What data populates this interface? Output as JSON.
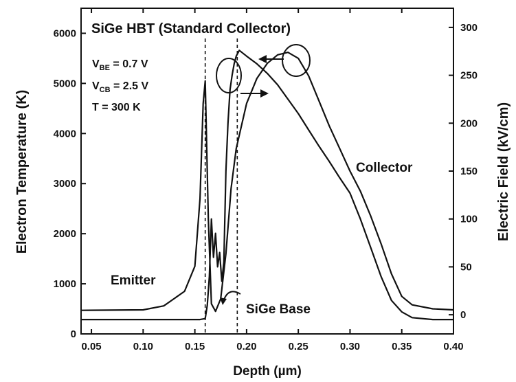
{
  "chart_data": {
    "type": "line",
    "title": "SiGe HBT (Standard Collector)",
    "xlabel": "Depth (µm)",
    "ylabel_left": "Electron Temperature (K)",
    "ylabel_right": "Electric Field (kV/cm)",
    "xlim": [
      0.04,
      0.4
    ],
    "ylim_left": [
      0,
      6500
    ],
    "ylim_right": [
      -20,
      320
    ],
    "x_ticks": [
      0.05,
      0.1,
      0.15,
      0.2,
      0.25,
      0.3,
      0.35,
      0.4
    ],
    "x_tick_labels": [
      "0.05",
      "0.10",
      "0.15",
      "0.20",
      "0.25",
      "0.30",
      "0.35",
      "0.40"
    ],
    "y_left_ticks": [
      0,
      1000,
      2000,
      3000,
      4000,
      5000,
      6000
    ],
    "y_left_tick_labels": [
      "0",
      "1000",
      "2000",
      "3000",
      "4000",
      "5000",
      "6000"
    ],
    "y_right_ticks": [
      0,
      50,
      100,
      150,
      200,
      250,
      300
    ],
    "y_right_tick_labels": [
      "0",
      "50",
      "100",
      "150",
      "200",
      "250",
      "300"
    ],
    "conditions": [
      {
        "main": "V",
        "sub": "BE",
        "rest": " = 0.7 V"
      },
      {
        "main": "V",
        "sub": "CB",
        "rest": " = 2.5 V"
      },
      {
        "main": "T = 300 K",
        "sub": "",
        "rest": ""
      }
    ],
    "region_labels": {
      "emitter": "Emitter",
      "collector": "Collector",
      "base": "SiGe Base"
    },
    "vlines": [
      0.16,
      0.191
    ],
    "grid": false,
    "series": [
      {
        "axis": "left",
        "x": [
          0.04,
          0.1,
          0.12,
          0.14,
          0.15,
          0.155,
          0.158,
          0.16,
          0.163,
          0.166,
          0.17,
          0.175,
          0.18,
          0.185,
          0.19,
          0.2,
          0.21,
          0.22,
          0.23,
          0.24,
          0.25,
          0.26,
          0.27,
          0.28,
          0.29,
          0.3,
          0.31,
          0.32,
          0.33,
          0.34,
          0.35,
          0.36,
          0.38,
          0.4
        ],
        "y": [
          470,
          480,
          560,
          850,
          1350,
          2700,
          4600,
          5050,
          2300,
          600,
          450,
          700,
          1600,
          2900,
          3700,
          4600,
          5100,
          5400,
          5570,
          5620,
          5500,
          5150,
          4650,
          4150,
          3700,
          3250,
          2850,
          2350,
          1800,
          1200,
          750,
          580,
          500,
          480
        ]
      },
      {
        "axis": "right",
        "x": [
          0.04,
          0.155,
          0.16,
          0.162,
          0.164,
          0.166,
          0.168,
          0.17,
          0.172,
          0.174,
          0.176,
          0.178,
          0.18,
          0.182,
          0.184,
          0.186,
          0.188,
          0.19,
          0.193,
          0.2,
          0.21,
          0.22,
          0.23,
          0.24,
          0.25,
          0.26,
          0.27,
          0.28,
          0.29,
          0.3,
          0.31,
          0.32,
          0.33,
          0.34,
          0.35,
          0.36,
          0.38,
          0.4
        ],
        "y": [
          -5,
          -5,
          -4,
          10,
          40,
          100,
          60,
          85,
          50,
          65,
          35,
          55,
          150,
          200,
          235,
          250,
          262,
          270,
          276,
          270,
          262,
          252,
          240,
          225,
          210,
          193,
          176,
          160,
          143,
          127,
          100,
          70,
          40,
          15,
          3,
          -3,
          -5,
          -5
        ]
      }
    ]
  }
}
